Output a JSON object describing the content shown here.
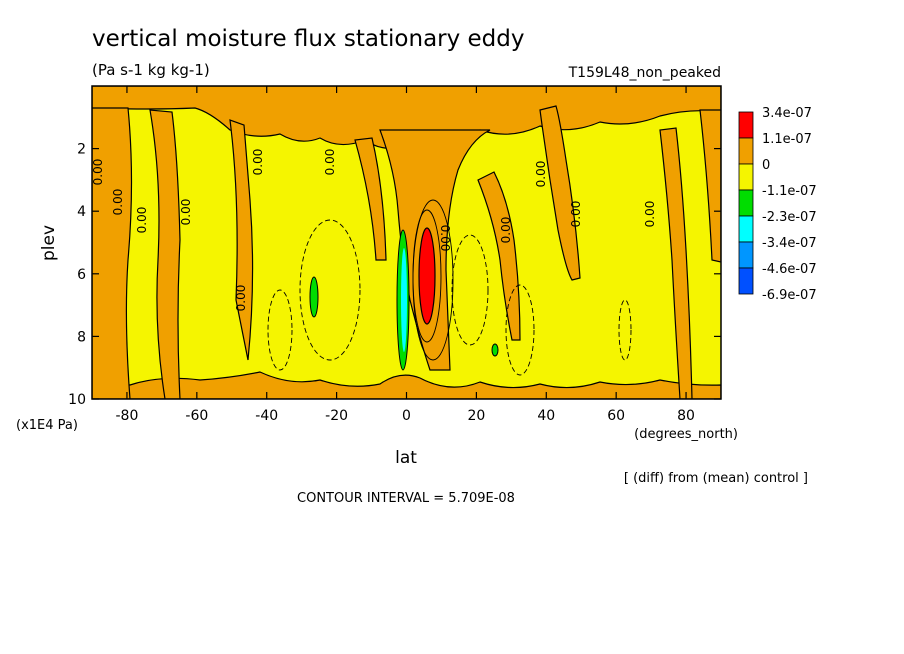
{
  "chart_data": {
    "type": "heatmap",
    "title": "vertical moisture flux stationary eddy",
    "units": "(Pa s-1 kg kg-1)",
    "run_label": "T159L48_non_peaked",
    "xlabel": "lat",
    "x_units": "(degrees_north)",
    "ylabel": "plev",
    "y_units": "(x1E4 Pa)",
    "xlim": [
      -90,
      90
    ],
    "ylim": [
      10,
      0
    ],
    "x_ticks": [
      -80,
      -60,
      -40,
      -20,
      0,
      20,
      40,
      60,
      80
    ],
    "x_tick_labels": [
      "-80",
      "-60",
      "-40",
      "-20",
      "0",
      "20",
      "40",
      "60",
      "80"
    ],
    "y_ticks": [
      2,
      4,
      6,
      8,
      10
    ],
    "y_tick_labels": [
      "2",
      "4",
      "6",
      "8",
      "10"
    ],
    "legend": {
      "placement": "right",
      "levels": [
        "3.4e-07",
        "1.1e-07",
        "0",
        "-1.1e-07",
        "-2.3e-07",
        "-3.4e-07",
        "-4.6e-07",
        "-6.9e-07"
      ],
      "colors": [
        "#ff0000",
        "#f0a000",
        "#f5f500",
        "#00dd00",
        "#00ffff",
        "#0096ff",
        "#0050ff"
      ]
    },
    "contour_labels": [
      "0.00",
      "0.00",
      "0.00",
      "0.00",
      "0.00",
      "0.00",
      "0.00",
      "0.00",
      "0.00",
      "0.00",
      "0.00",
      "0.00"
    ],
    "contour_interval_text": "CONTOUR INTERVAL = 5.709E-08",
    "footnote": "[ (diff) from (mean) control ]"
  }
}
